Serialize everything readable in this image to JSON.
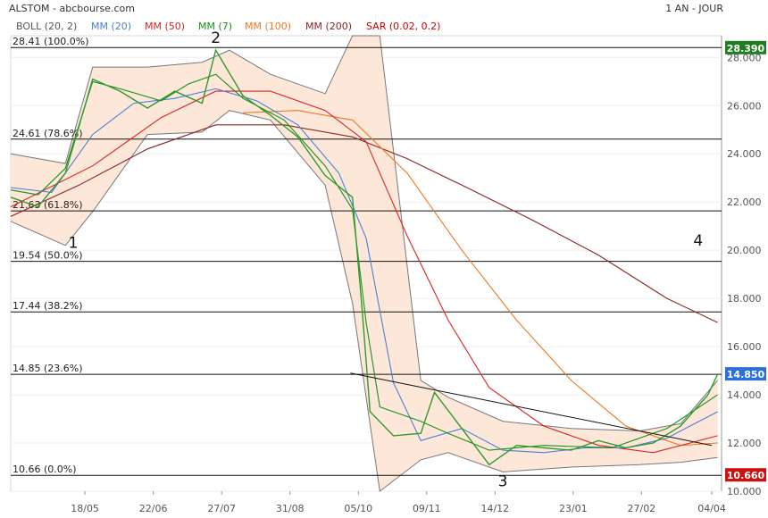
{
  "header": {
    "symbol_source": "ALSTOM - abcbourse.com",
    "period": "1 AN - JOUR"
  },
  "legend": [
    {
      "label": "BOLL (20, 2)",
      "color": "#555555"
    },
    {
      "label": "MM (20)",
      "color": "#4a7fd6"
    },
    {
      "label": "MM (50)",
      "color": "#dd2222"
    },
    {
      "label": "MM (7)",
      "color": "#1a8f1a"
    },
    {
      "label": "MM (100)",
      "color": "#ee7722"
    },
    {
      "label": "MM (200)",
      "color": "#8b2323"
    },
    {
      "label": "SAR (0.02, 0.2)",
      "color": "#cc0000"
    }
  ],
  "badges": {
    "top": {
      "text": "28.390",
      "color": "#1e7d1e"
    },
    "last": {
      "text": "14.850",
      "color": "#2a6fdb"
    },
    "bottom": {
      "text": "10.660",
      "color": "#cc1111"
    }
  },
  "chart_data": {
    "type": "line",
    "subtype": "candlestick",
    "ylim": [
      10,
      28.9
    ],
    "y_ticks": [
      "10.000",
      "12.000",
      "14.000",
      "16.000",
      "18.000",
      "20.000",
      "22.000",
      "24.000",
      "26.000",
      "28.000"
    ],
    "x_ticks": [
      "18/05",
      "22/06",
      "27/07",
      "31/08",
      "05/10",
      "09/11",
      "14/12",
      "23/01",
      "27/02",
      "04/04"
    ],
    "fibonacci_levels": [
      {
        "label": "28.41  (100.0%)",
        "value": 28.41
      },
      {
        "label": "24.61  (78.6%)",
        "value": 24.61
      },
      {
        "label": "21.63  (61.8%)",
        "value": 21.63
      },
      {
        "label": "19.54  (50.0%)",
        "value": 19.54
      },
      {
        "label": "17.44  (38.2%)",
        "value": 17.44
      },
      {
        "label": "14.85  (23.6%)",
        "value": 14.85
      },
      {
        "label": "10.66  (0.0%)",
        "value": 10.66
      }
    ],
    "wave_labels": [
      {
        "label": "1",
        "x": "2024-05-12",
        "y": 20.1
      },
      {
        "label": "2",
        "x": "2024-07-24",
        "y": 28.6
      },
      {
        "label": "3",
        "x": "2024-12-18",
        "y": 10.2
      },
      {
        "label": "4",
        "x": "2025-03-28",
        "y": 20.2
      }
    ],
    "series": [
      {
        "name": "MM (20)",
        "x": [
          "2024-04-10",
          "2024-05-01",
          "2024-05-22",
          "2024-06-12",
          "2024-07-03",
          "2024-07-24",
          "2024-08-14",
          "2024-09-04",
          "2024-09-25",
          "2024-10-09",
          "2024-10-23",
          "2024-11-06",
          "2024-11-27",
          "2024-12-18",
          "2025-01-08",
          "2025-01-29",
          "2025-02-19",
          "2025-03-12",
          "2025-04-07"
        ],
        "values": [
          22.6,
          22.4,
          24.8,
          26.1,
          26.3,
          26.7,
          26.2,
          25.2,
          23.2,
          20.5,
          14.5,
          12.1,
          12.6,
          11.7,
          11.6,
          11.8,
          11.8,
          12.2,
          13.3
        ]
      },
      {
        "name": "MM (50)",
        "x": [
          "2024-04-10",
          "2024-05-22",
          "2024-06-26",
          "2024-07-24",
          "2024-08-21",
          "2024-09-18",
          "2024-10-09",
          "2024-10-30",
          "2024-11-20",
          "2024-12-11",
          "2025-01-08",
          "2025-02-05",
          "2025-03-05",
          "2025-04-07"
        ],
        "values": [
          21.8,
          23.5,
          25.5,
          26.6,
          26.6,
          25.8,
          24.5,
          20.6,
          17.1,
          14.3,
          12.7,
          11.9,
          11.6,
          12.3
        ]
      },
      {
        "name": "MM (100)",
        "x": [
          "2024-08-07",
          "2024-09-04",
          "2024-10-02",
          "2024-10-30",
          "2024-11-27",
          "2024-12-25",
          "2025-01-22",
          "2025-02-19",
          "2025-03-19",
          "2025-04-07"
        ],
        "values": [
          25.7,
          25.8,
          25.4,
          23.2,
          20.0,
          17.1,
          14.6,
          12.7,
          11.9,
          12.0
        ]
      },
      {
        "name": "MM (200)",
        "x": [
          "2024-04-10",
          "2024-05-15",
          "2024-06-19",
          "2024-07-24",
          "2024-08-28",
          "2024-10-02",
          "2024-10-30",
          "2024-11-27",
          "2025-01-01",
          "2025-02-05",
          "2025-03-12",
          "2025-04-07"
        ],
        "values": [
          21.4,
          22.7,
          24.2,
          25.2,
          25.2,
          24.7,
          23.8,
          22.7,
          21.3,
          19.8,
          18.0,
          17.0
        ]
      },
      {
        "name": "MM (7)",
        "x": [
          "2024-04-10",
          "2024-04-24",
          "2024-05-08",
          "2024-05-22",
          "2024-06-05",
          "2024-06-26",
          "2024-07-10",
          "2024-07-24",
          "2024-08-07",
          "2024-08-28",
          "2024-09-18",
          "2024-10-02",
          "2024-10-09",
          "2024-10-16",
          "2024-11-06",
          "2024-11-20",
          "2024-12-11",
          "2025-01-08",
          "2025-02-12",
          "2025-03-12",
          "2025-04-07"
        ],
        "values": [
          22.5,
          22.3,
          23.4,
          27.0,
          26.7,
          26.2,
          26.9,
          27.3,
          26.3,
          25.4,
          23.5,
          21.7,
          17.0,
          13.5,
          12.9,
          12.4,
          11.7,
          11.9,
          11.8,
          12.6,
          14.0
        ]
      },
      {
        "name": "BOLL upper",
        "x": [
          "2024-04-10",
          "2024-05-08",
          "2024-05-22",
          "2024-06-19",
          "2024-07-17",
          "2024-07-31",
          "2024-08-21",
          "2024-09-18",
          "2024-10-02",
          "2024-10-16",
          "2024-11-06",
          "2024-11-20",
          "2024-12-18",
          "2025-01-22",
          "2025-02-26",
          "2025-03-19",
          "2025-04-07"
        ],
        "values": [
          24.0,
          23.6,
          27.6,
          27.6,
          27.8,
          28.3,
          27.3,
          26.5,
          28.9,
          28.9,
          14.6,
          13.9,
          12.9,
          12.6,
          12.5,
          12.8,
          14.6
        ]
      },
      {
        "name": "BOLL lower",
        "x": [
          "2024-04-10",
          "2024-05-08",
          "2024-05-22",
          "2024-06-19",
          "2024-07-17",
          "2024-07-31",
          "2024-08-21",
          "2024-09-18",
          "2024-10-02",
          "2024-10-16",
          "2024-11-06",
          "2024-11-20",
          "2024-12-18",
          "2025-01-22",
          "2025-02-26",
          "2025-03-19",
          "2025-04-07"
        ],
        "values": [
          21.2,
          20.2,
          21.6,
          24.8,
          24.9,
          25.8,
          25.4,
          22.7,
          17.8,
          10.0,
          11.3,
          11.6,
          10.8,
          11.0,
          11.1,
          11.2,
          11.4
        ]
      },
      {
        "name": "Close",
        "x": [
          "2024-04-10",
          "2024-04-24",
          "2024-05-08",
          "2024-05-22",
          "2024-06-05",
          "2024-06-19",
          "2024-07-03",
          "2024-07-17",
          "2024-07-24",
          "2024-08-07",
          "2024-08-21",
          "2024-09-04",
          "2024-09-18",
          "2024-10-02",
          "2024-10-07",
          "2024-10-11",
          "2024-10-23",
          "2024-11-06",
          "2024-11-13",
          "2024-11-27",
          "2024-12-11",
          "2024-12-25",
          "2025-01-08",
          "2025-01-22",
          "2025-02-05",
          "2025-02-19",
          "2025-03-05",
          "2025-03-19",
          "2025-04-02",
          "2025-04-07"
        ],
        "values": [
          22.2,
          21.8,
          23.2,
          27.1,
          26.6,
          25.9,
          26.6,
          26.1,
          28.3,
          26.4,
          25.6,
          24.7,
          23.1,
          22.2,
          17.5,
          13.3,
          12.3,
          12.4,
          14.1,
          12.6,
          11.1,
          11.9,
          11.8,
          11.7,
          12.1,
          11.8,
          12.0,
          12.7,
          14.0,
          14.85
        ]
      }
    ],
    "trendline": {
      "x": [
        "2024-10-01",
        "2025-04-04"
      ],
      "values": [
        14.9,
        11.9
      ]
    }
  }
}
